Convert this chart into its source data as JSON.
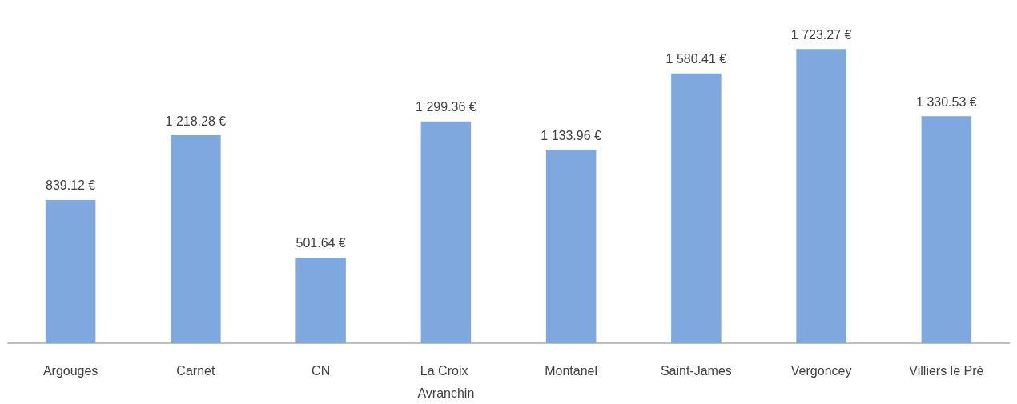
{
  "chart_data": {
    "type": "bar",
    "categories": [
      "Argouges",
      "Carnet",
      "CN",
      "La Croix Avranchin",
      "Montanel",
      "Saint-James",
      "Vergoncey",
      "Villiers le Pré"
    ],
    "values": [
      839.12,
      1218.28,
      501.64,
      1299.36,
      1133.96,
      1580.41,
      1723.27,
      1330.53
    ],
    "value_labels": [
      "839.12 €",
      "1 218.28 €",
      "501.64 €",
      "1 299.36 €",
      "1 133.96 €",
      "1 580.41 €",
      "1 723.27 €",
      "1 330.53 €"
    ],
    "color": "#7fa9de"
  }
}
